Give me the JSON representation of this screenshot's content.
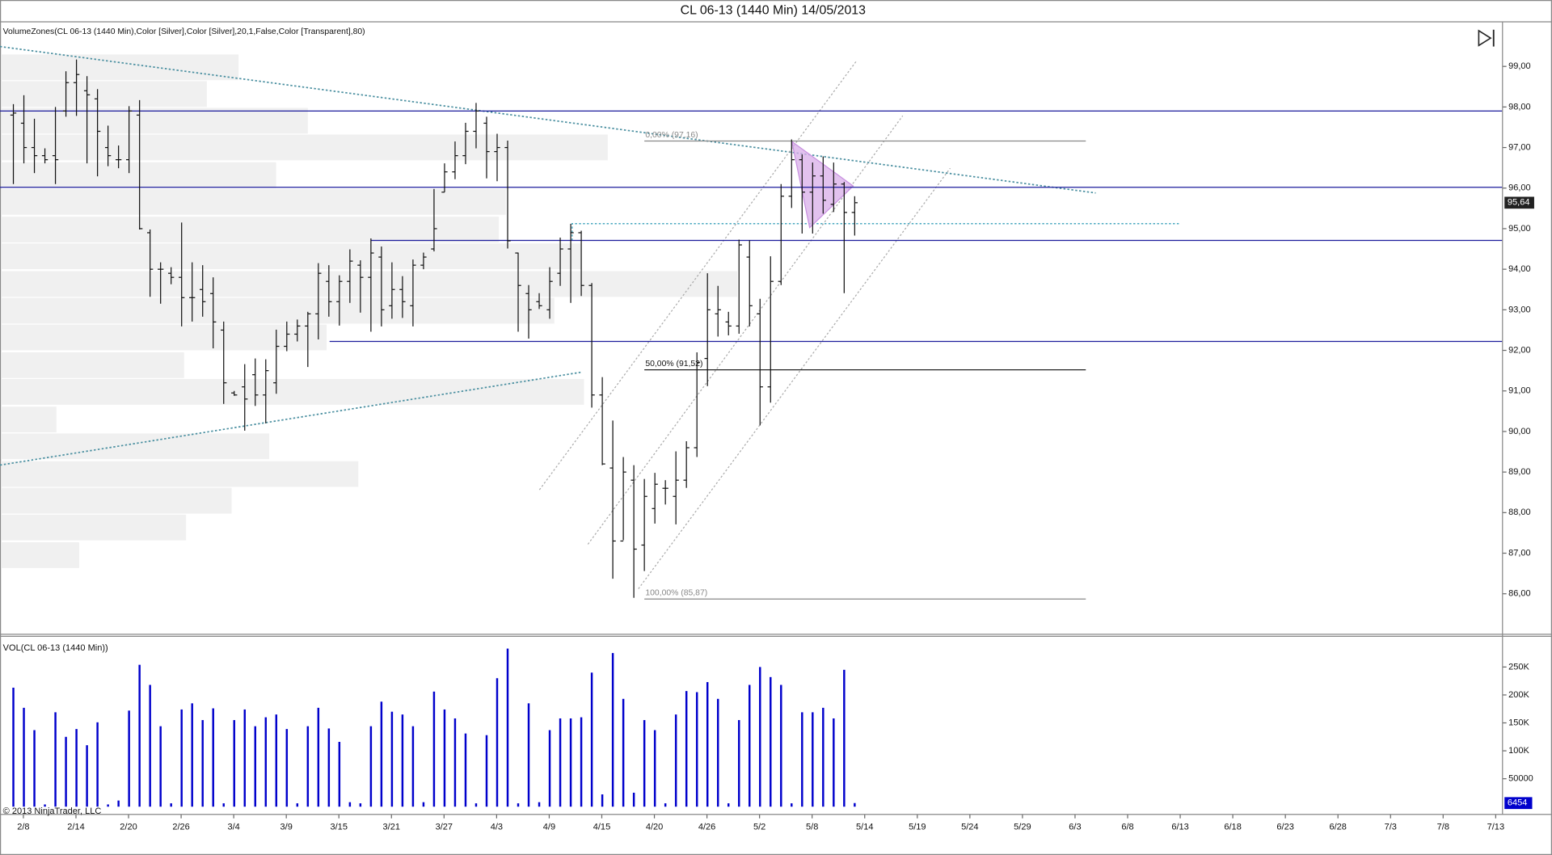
{
  "chart_data": {
    "type": "ohlc",
    "title": "CL 06-13 (1440 Min)  14/05/2013",
    "indicator_label": "VolumeZones(CL 06-13 (1440 Min),Color [Silver],Color [Silver],20,1,False,Color [Transparent],80)",
    "volume_label": "VOL(CL 06-13 (1440 Min))",
    "copyright": "© 2013 NinjaTrader, LLC",
    "color": "#111111",
    "volume_color": "#0000cc",
    "level_color": "#1c1c9c",
    "categories": [
      null,
      "2/8",
      null,
      null,
      null,
      null,
      "2/14",
      null,
      null,
      null,
      null,
      "2/20",
      null,
      null,
      null,
      null,
      "2/26",
      null,
      null,
      null,
      null,
      "3/4",
      null,
      null,
      null,
      null,
      "3/9",
      null,
      null,
      null,
      null,
      "3/15",
      null,
      null,
      null,
      null,
      "3/21",
      null,
      null,
      null,
      null,
      "3/27",
      null,
      null,
      null,
      null,
      "4/3",
      null,
      null,
      null,
      null,
      "4/9",
      null,
      null,
      null,
      null,
      "4/15",
      null,
      null,
      null,
      null,
      "4/20",
      null,
      null,
      null,
      null,
      "4/26",
      null,
      null,
      null,
      null,
      "5/2",
      null,
      null,
      null,
      null,
      "5/8",
      null,
      null,
      null,
      null,
      "5/14",
      null,
      null,
      null,
      null,
      "5/19",
      null,
      null,
      null,
      null,
      "5/24",
      null,
      null,
      null,
      null,
      "5/29",
      null,
      null,
      null,
      null,
      "6/3",
      null,
      null,
      null,
      null,
      "6/8",
      null,
      null,
      null,
      null,
      "6/13",
      null,
      null,
      null,
      null,
      "6/18",
      null,
      null,
      null,
      null,
      "6/23",
      null,
      null,
      null,
      null,
      "6/28",
      null,
      null,
      null,
      null,
      "7/3",
      null,
      null,
      null,
      null,
      "7/8",
      null,
      null,
      null,
      null,
      "7/13"
    ],
    "open": [
      97.8,
      97.6,
      97.0,
      96.8,
      96.8,
      97.9,
      98.6,
      98.4,
      98.2,
      97.0,
      96.7,
      96.7,
      97.8,
      94.9,
      94.0,
      93.9,
      93.8,
      93.3,
      93.5,
      93.4,
      92.5,
      90.95,
      91.1,
      91.4,
      90.9,
      91.2,
      92.1,
      92.4,
      92.6,
      92.9,
      93.7,
      93.2,
      93.7,
      94.1,
      93.8,
      94.3,
      93.1,
      93.5,
      93.1,
      94.1,
      94.5,
      95.9,
      96.4,
      96.8,
      97.4,
      97.6,
      96.9,
      97.0,
      94.4,
      93.4,
      93.2,
      93.0,
      93.9,
      94.5,
      94.9,
      93.6,
      90.9,
      89.1,
      87.3,
      88.8,
      87.2,
      88.1,
      88.6,
      88.4,
      88.8,
      89.6,
      91.8,
      92.9,
      92.7,
      92.6,
      94.3,
      92.9,
      91.1,
      93.7,
      95.8,
      96.7,
      95.9,
      96.3,
      95.6,
      96.1,
      95.4,
      null,
      null,
      null,
      null,
      null,
      null,
      null,
      null,
      null,
      null,
      null,
      null,
      null,
      null,
      null,
      null,
      null,
      null,
      null,
      null,
      null,
      null,
      null,
      null,
      null,
      null,
      null,
      null,
      null,
      null,
      null,
      null,
      null,
      null,
      null,
      null,
      null,
      null,
      null,
      null,
      null,
      null,
      null,
      null,
      null,
      null,
      null,
      null,
      null,
      null,
      null,
      null,
      null,
      null,
      null,
      null,
      null,
      null,
      null,
      null,
      null
    ],
    "high": [
      98.07,
      98.29,
      97.71,
      96.98,
      98.0,
      98.88,
      99.17,
      98.76,
      98.44,
      97.54,
      97.05,
      98.02,
      98.17,
      94.98,
      94.17,
      94.05,
      95.15,
      94.17,
      94.1,
      93.8,
      92.71,
      91.0,
      91.66,
      91.8,
      91.78,
      92.51,
      92.71,
      92.76,
      92.95,
      94.15,
      94.1,
      93.85,
      94.49,
      94.22,
      94.76,
      94.56,
      94.17,
      93.83,
      94.24,
      94.41,
      95.98,
      96.61,
      97.15,
      97.61,
      98.1,
      97.76,
      97.34,
      97.17,
      94.41,
      93.61,
      93.41,
      94.05,
      94.78,
      95.12,
      94.95,
      93.66,
      91.34,
      90.27,
      89.37,
      89.17,
      88.83,
      88.98,
      88.8,
      89.51,
      89.76,
      91.95,
      93.9,
      93.59,
      92.95,
      94.73,
      94.71,
      93.27,
      94.32,
      96.1,
      97.2,
      96.83,
      96.63,
      96.78,
      96.63,
      96.15,
      95.8,
      null,
      null,
      null,
      null,
      null,
      null,
      null,
      null,
      null,
      null,
      null,
      null,
      null,
      null,
      null,
      null,
      null,
      null,
      null,
      null,
      null,
      null,
      null,
      null,
      null,
      null,
      null,
      null,
      null,
      null,
      null,
      null,
      null,
      null,
      null,
      null,
      null,
      null,
      null,
      null,
      null,
      null,
      null,
      null,
      null,
      null,
      null,
      null,
      null,
      null,
      null,
      null,
      null,
      null,
      null,
      null,
      null,
      null,
      null,
      null,
      null
    ],
    "low": [
      96.1,
      96.61,
      96.37,
      96.61,
      96.1,
      97.76,
      97.78,
      96.61,
      96.29,
      96.54,
      96.49,
      96.37,
      94.98,
      93.32,
      93.15,
      93.63,
      92.59,
      92.71,
      92.83,
      92.05,
      90.68,
      90.88,
      90.02,
      90.63,
      90.2,
      90.93,
      91.98,
      92.22,
      91.59,
      92.27,
      92.83,
      92.61,
      93.17,
      92.93,
      92.46,
      92.59,
      92.78,
      92.8,
      92.59,
      94.0,
      94.44,
      95.9,
      96.22,
      96.59,
      96.98,
      96.24,
      96.17,
      94.51,
      92.46,
      92.29,
      93.02,
      92.78,
      93.59,
      93.17,
      93.34,
      90.59,
      89.17,
      86.37,
      87.32,
      85.9,
      86.56,
      87.73,
      88.2,
      87.71,
      88.61,
      89.37,
      91.12,
      92.34,
      92.37,
      92.41,
      92.59,
      90.15,
      90.71,
      93.61,
      95.51,
      94.88,
      94.88,
      95.37,
      95.41,
      93.41,
      94.83,
      null,
      null,
      null,
      null,
      null,
      null,
      null,
      null,
      null,
      null,
      null,
      null,
      null,
      null,
      null,
      null,
      null,
      null,
      null,
      null,
      null,
      null,
      null,
      null,
      null,
      null,
      null,
      null,
      null,
      null,
      null,
      null,
      null,
      null,
      null,
      null,
      null,
      null,
      null,
      null,
      null,
      null,
      null,
      null,
      null,
      null,
      null,
      null,
      null,
      null,
      null,
      null,
      null,
      null,
      null,
      null,
      null,
      null,
      null,
      null,
      null
    ],
    "close": [
      97.85,
      97.0,
      96.8,
      96.7,
      96.7,
      98.6,
      98.8,
      98.3,
      97.4,
      96.8,
      96.7,
      97.9,
      95.0,
      94.0,
      94.0,
      93.8,
      93.3,
      93.3,
      93.2,
      92.7,
      91.2,
      90.9,
      90.8,
      90.9,
      91.5,
      92.1,
      92.4,
      92.6,
      92.9,
      93.9,
      93.2,
      93.7,
      94.2,
      93.8,
      94.4,
      93.0,
      93.5,
      93.2,
      94.1,
      94.3,
      95.0,
      96.4,
      96.8,
      97.4,
      97.9,
      96.9,
      97.0,
      94.7,
      93.6,
      93.0,
      93.1,
      93.7,
      94.5,
      94.9,
      93.6,
      90.9,
      89.2,
      87.3,
      89.0,
      87.1,
      88.4,
      88.7,
      88.6,
      88.8,
      89.6,
      91.7,
      93.0,
      93.0,
      92.6,
      94.6,
      93.1,
      91.1,
      93.7,
      95.8,
      96.7,
      95.9,
      96.3,
      95.7,
      96.1,
      95.4,
      95.64,
      null,
      null,
      null,
      null,
      null,
      null,
      null,
      null,
      null,
      null,
      null,
      null,
      null,
      null,
      null,
      null,
      null,
      null,
      null,
      null,
      null,
      null,
      null,
      null,
      null,
      null,
      null,
      null,
      null,
      null,
      null,
      null,
      null,
      null,
      null,
      null,
      null,
      null,
      null,
      null,
      null,
      null,
      null,
      null,
      null,
      null,
      null,
      null,
      null,
      null,
      null,
      null,
      null,
      null,
      null,
      null,
      null,
      null,
      null,
      null,
      null
    ],
    "volume": [
      213000,
      177000,
      137000,
      4000,
      169000,
      125000,
      139000,
      110000,
      151000,
      4000,
      11000,
      172000,
      254000,
      218000,
      144000,
      6000,
      174000,
      185000,
      155000,
      176000,
      6000,
      155000,
      174000,
      144000,
      160000,
      165000,
      139000,
      6000,
      144000,
      177000,
      140000,
      116000,
      8000,
      6000,
      144000,
      188000,
      170000,
      165000,
      144000,
      8000,
      206000,
      174000,
      158000,
      131000,
      6000,
      128000,
      230000,
      283000,
      6000,
      185000,
      8000,
      137000,
      158000,
      158000,
      160000,
      240000,
      22000,
      275000,
      193000,
      25000,
      155000,
      137000,
      6000,
      165000,
      207000,
      205000,
      223000,
      193000,
      6000,
      155000,
      218000,
      250000,
      232000,
      218000,
      6000,
      169000,
      169000,
      177000,
      158000,
      245000,
      6454,
      null,
      null,
      null,
      null,
      null,
      null,
      null,
      null,
      null,
      null,
      null,
      null,
      null,
      null,
      null,
      null,
      null,
      null,
      null,
      null,
      null,
      null,
      null,
      null,
      null,
      null,
      null,
      null,
      null,
      null,
      null,
      null,
      null,
      null,
      null,
      null,
      null,
      null,
      null,
      null,
      null,
      null,
      null,
      null,
      null,
      null,
      null,
      null,
      null,
      null,
      null,
      null,
      null,
      null,
      null,
      null,
      null,
      null,
      null,
      null,
      null
    ],
    "last_price_label": "95,64",
    "ylim": [
      85.0,
      100.1
    ],
    "yticks": [
      {
        "value": 86,
        "label": "86,00"
      },
      {
        "value": 87,
        "label": "87,00"
      },
      {
        "value": 88,
        "label": "88,00"
      },
      {
        "value": 89,
        "label": "89,00"
      },
      {
        "value": 90,
        "label": "90,00"
      },
      {
        "value": 91,
        "label": "91,00"
      },
      {
        "value": 92,
        "label": "92,00"
      },
      {
        "value": 93,
        "label": "93,00"
      },
      {
        "value": 94,
        "label": "94,00"
      },
      {
        "value": 95,
        "label": "95,00"
      },
      {
        "value": 96,
        "label": "96,00"
      },
      {
        "value": 97,
        "label": "97,00"
      },
      {
        "value": 98,
        "label": "98,00"
      },
      {
        "value": 99,
        "label": "99,00"
      }
    ],
    "volume_ylim": [
      -5000,
      305000
    ],
    "volume_yticks": [
      50000,
      {
        "value": 100000,
        "label": "100K"
      },
      {
        "value": 150000,
        "label": "150K"
      },
      {
        "value": 200000,
        "label": "200K"
      },
      {
        "value": 250000,
        "label": "250K"
      }
    ],
    "levels": [
      97.9,
      96.02,
      94.71,
      92.22
    ],
    "fib_levels": [
      {
        "value": 97.16,
        "label": "0,00% (97,16)"
      },
      {
        "value": 91.52,
        "label": "50,00% (91,52)"
      },
      {
        "value": 85.87,
        "label": "100,00% (85,87)"
      }
    ]
  }
}
